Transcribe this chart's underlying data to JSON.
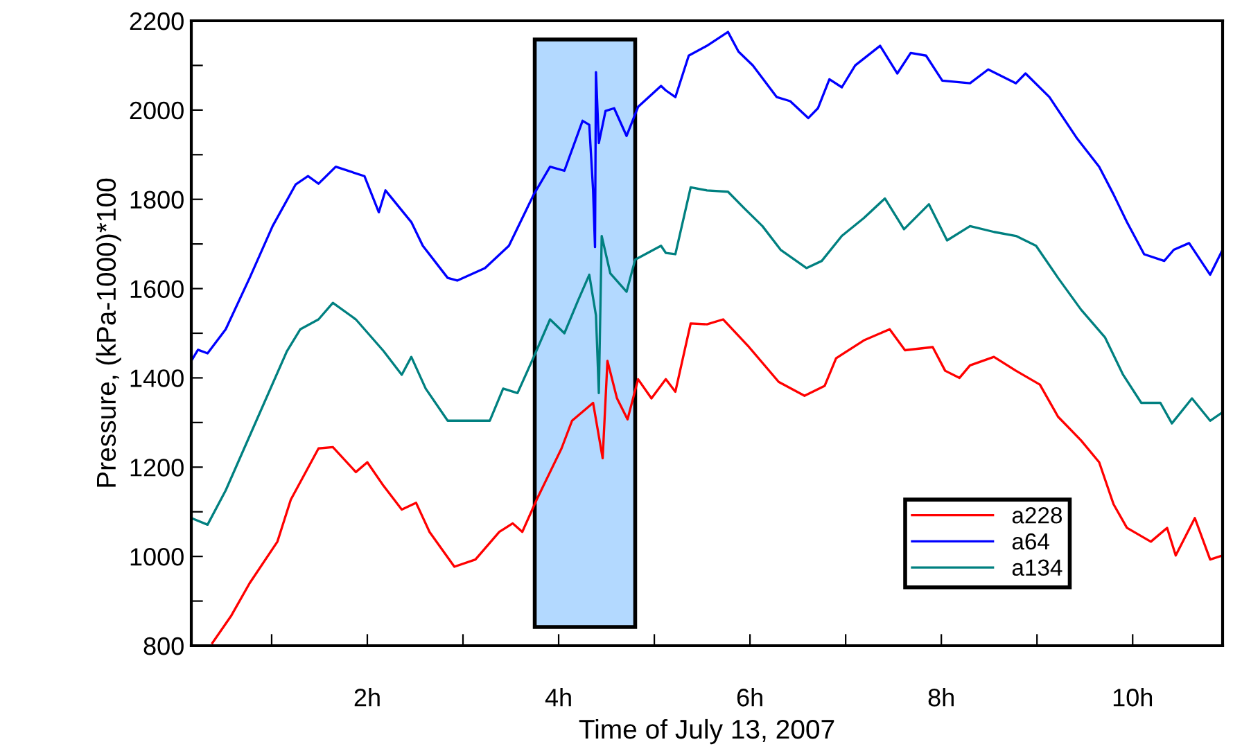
{
  "chart_data": {
    "type": "line",
    "xlabel": "Time of July 13, 2007",
    "ylabel": "Pressure, (kPa-1000)*100",
    "xlim": [
      0.16,
      10.94
    ],
    "ylim": [
      800,
      2200
    ],
    "xticks": [
      {
        "value": 1,
        "label": null
      },
      {
        "value": 2,
        "label": "2h"
      },
      {
        "value": 3,
        "label": null
      },
      {
        "value": 4,
        "label": "4h"
      },
      {
        "value": 5,
        "label": null
      },
      {
        "value": 6,
        "label": "6h"
      },
      {
        "value": 7,
        "label": null
      },
      {
        "value": 8,
        "label": "8h"
      },
      {
        "value": 9,
        "label": null
      },
      {
        "value": 10,
        "label": "10h"
      }
    ],
    "yticks": [
      800,
      {
        "value": 900,
        "label": null
      },
      1000,
      {
        "value": 1100,
        "label": null
      },
      1200,
      {
        "value": 1300,
        "label": null
      },
      1400,
      {
        "value": 1500,
        "label": null
      },
      1600,
      {
        "value": 1700,
        "label": null
      },
      1800,
      {
        "value": 1900,
        "label": null
      },
      2000,
      {
        "value": 2100,
        "label": null
      },
      2200
    ],
    "grid": false,
    "legend": "bottom right",
    "marker": "none",
    "line_style": "solid",
    "bands": [
      {
        "axis": "x",
        "from": 3.75,
        "to": 4.8,
        "color": "#b3d9ff"
      }
    ],
    "series": [
      {
        "name": "a228",
        "color": "#ff0000",
        "x": [
          0.38,
          0.58,
          0.77,
          1.06,
          1.2,
          1.49,
          1.64,
          1.88,
          2.0,
          2.17,
          2.36,
          2.51,
          2.65,
          2.91,
          3.13,
          3.38,
          3.52,
          3.62,
          3.77,
          3.91,
          4.03,
          4.14,
          4.36,
          4.46,
          4.51,
          4.61,
          4.72,
          4.83,
          4.97,
          5.12,
          5.22,
          5.38,
          5.55,
          5.72,
          5.99,
          6.3,
          6.57,
          6.78,
          6.9,
          7.19,
          7.46,
          7.62,
          7.91,
          8.04,
          8.19,
          8.3,
          8.55,
          8.78,
          9.03,
          9.22,
          9.46,
          9.65,
          9.8,
          9.94,
          10.19,
          10.36,
          10.45,
          10.65,
          10.81,
          10.94
        ],
        "values": [
          806,
          868,
          940,
          1033,
          1127,
          1242,
          1245,
          1189,
          1211,
          1158,
          1105,
          1120,
          1055,
          977,
          993,
          1055,
          1074,
          1055,
          1127,
          1189,
          1242,
          1304,
          1344,
          1220,
          1438,
          1354,
          1307,
          1397,
          1354,
          1397,
          1369,
          1522,
          1520,
          1531,
          1469,
          1391,
          1360,
          1382,
          1444,
          1484,
          1509,
          1462,
          1469,
          1416,
          1400,
          1428,
          1447,
          1416,
          1385,
          1313,
          1260,
          1211,
          1117,
          1064,
          1033,
          1064,
          1002,
          1086,
          993,
          1002
        ]
      },
      {
        "name": "a64",
        "color": "#0000ff",
        "x": [
          0.16,
          0.23,
          0.33,
          0.52,
          0.77,
          1.01,
          1.25,
          1.38,
          1.49,
          1.67,
          1.97,
          2.12,
          2.19,
          2.46,
          2.58,
          2.84,
          2.94,
          3.23,
          3.48,
          3.74,
          3.91,
          4.06,
          4.25,
          4.32,
          4.36,
          4.38,
          4.39,
          4.42,
          4.49,
          4.58,
          4.71,
          4.83,
          5.07,
          5.12,
          5.22,
          5.36,
          5.55,
          5.77,
          5.88,
          6.03,
          6.28,
          6.42,
          6.61,
          6.71,
          6.83,
          6.96,
          7.1,
          7.36,
          7.54,
          7.68,
          7.84,
          8.01,
          8.3,
          8.49,
          8.78,
          8.88,
          9.13,
          9.42,
          9.65,
          9.8,
          9.94,
          10.12,
          10.33,
          10.43,
          10.59,
          10.81,
          10.94
        ],
        "values": [
          1438,
          1463,
          1455,
          1509,
          1624,
          1740,
          1833,
          1852,
          1835,
          1873,
          1852,
          1771,
          1820,
          1749,
          1696,
          1624,
          1618,
          1646,
          1696,
          1811,
          1873,
          1864,
          1976,
          1967,
          1820,
          1693,
          2085,
          1926,
          1998,
          2004,
          1942,
          2007,
          2054,
          2044,
          2029,
          2122,
          2144,
          2175,
          2131,
          2100,
          2029,
          2020,
          1982,
          2004,
          2069,
          2051,
          2100,
          2144,
          2082,
          2128,
          2122,
          2066,
          2060,
          2091,
          2060,
          2082,
          2029,
          1936,
          1873,
          1811,
          1749,
          1677,
          1662,
          1687,
          1702,
          1631,
          1687
        ]
      },
      {
        "name": "a134",
        "color": "#008080",
        "x": [
          0.16,
          0.33,
          0.52,
          0.84,
          1.16,
          1.3,
          1.49,
          1.64,
          1.88,
          2.17,
          2.36,
          2.46,
          2.61,
          2.84,
          3.04,
          3.28,
          3.42,
          3.57,
          3.74,
          3.91,
          4.06,
          4.2,
          4.32,
          4.39,
          4.42,
          4.45,
          4.54,
          4.71,
          4.8,
          5.07,
          5.12,
          5.22,
          5.38,
          5.55,
          5.77,
          5.94,
          6.13,
          6.32,
          6.59,
          6.75,
          6.96,
          7.19,
          7.41,
          7.61,
          7.87,
          8.06,
          8.3,
          8.55,
          8.78,
          8.99,
          9.22,
          9.46,
          9.71,
          9.9,
          10.09,
          10.29,
          10.41,
          10.62,
          10.81,
          10.94
        ],
        "values": [
          1086,
          1071,
          1148,
          1304,
          1460,
          1509,
          1531,
          1568,
          1531,
          1460,
          1407,
          1447,
          1376,
          1304,
          1304,
          1304,
          1376,
          1366,
          1447,
          1531,
          1500,
          1572,
          1631,
          1540,
          1366,
          1718,
          1634,
          1593,
          1665,
          1696,
          1680,
          1677,
          1827,
          1820,
          1817,
          1780,
          1740,
          1687,
          1646,
          1662,
          1718,
          1758,
          1802,
          1733,
          1789,
          1708,
          1740,
          1727,
          1718,
          1696,
          1624,
          1553,
          1491,
          1407,
          1344,
          1344,
          1298,
          1354,
          1304,
          1323
        ]
      }
    ]
  }
}
